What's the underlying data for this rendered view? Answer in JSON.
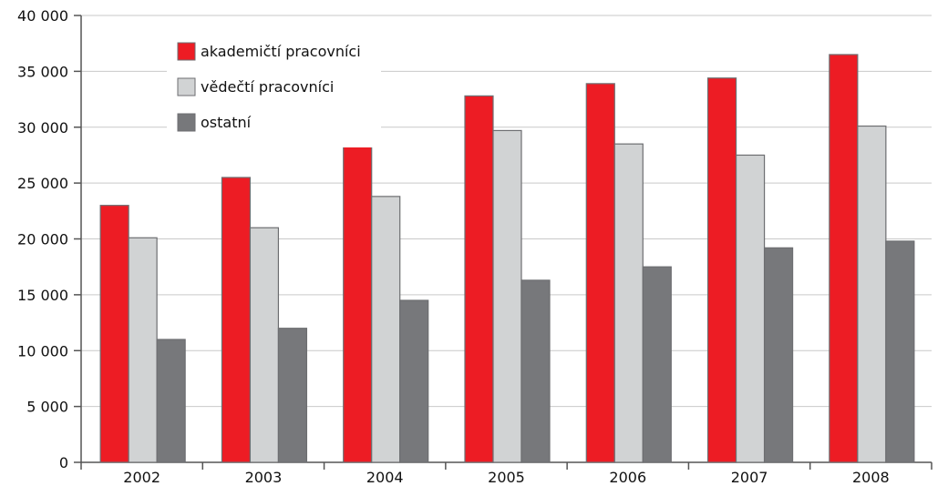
{
  "chart_data": {
    "type": "bar",
    "categories": [
      "2002",
      "2003",
      "2004",
      "2005",
      "2006",
      "2007",
      "2008"
    ],
    "series": [
      {
        "name": "akademičtí pracovníci",
        "color": "#ed1c24",
        "values": [
          23000,
          25500,
          28800,
          32800,
          33900,
          34400,
          36500
        ]
      },
      {
        "name": "vědečtí pracovníci",
        "color": "#d1d3d4",
        "values": [
          20100,
          21000,
          23800,
          29700,
          28500,
          27500,
          30100
        ]
      },
      {
        "name": "ostatní",
        "color": "#77787b",
        "values": [
          11000,
          12000,
          14500,
          16300,
          17500,
          19200,
          19800
        ]
      }
    ],
    "yticks": [
      "0",
      "5 000",
      "10 000",
      "15 000",
      "20 000",
      "25 000",
      "30 000",
      "35 000",
      "40 000"
    ],
    "ylim": [
      0,
      40000
    ],
    "grid": true,
    "legend_position": "top-left"
  }
}
